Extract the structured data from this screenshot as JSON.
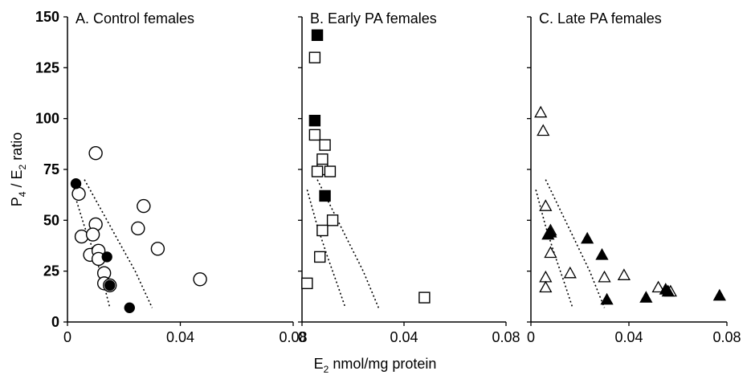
{
  "chart_data": {
    "type": "scatter",
    "ylabel": "P4 / E2 ratio",
    "xlabel": "E2 nmol/mg protein",
    "ylim": [
      0,
      150
    ],
    "xlim": [
      0,
      0.08
    ],
    "y_ticks": [
      "0",
      "25",
      "50",
      "75",
      "100",
      "125",
      "150"
    ],
    "x_ticks": [
      "0",
      "0.04",
      "0.08"
    ],
    "grid": false,
    "panels": [
      {
        "title": "A. Control females",
        "marker": "circle",
        "series": [
          {
            "style": "open",
            "points": [
              [
                0.004,
                63
              ],
              [
                0.01,
                83
              ],
              [
                0.027,
                57
              ],
              [
                0.025,
                46
              ],
              [
                0.032,
                36
              ],
              [
                0.047,
                21
              ],
              [
                0.01,
                48
              ],
              [
                0.005,
                42
              ],
              [
                0.009,
                43
              ],
              [
                0.008,
                33
              ],
              [
                0.011,
                35
              ],
              [
                0.011,
                31
              ],
              [
                0.013,
                24
              ],
              [
                0.013,
                19
              ],
              [
                0.015,
                18
              ]
            ]
          },
          {
            "style": "filled",
            "points": [
              [
                0.003,
                68
              ],
              [
                0.014,
                32
              ],
              [
                0.015,
                18
              ],
              [
                0.022,
                7
              ]
            ]
          }
        ],
        "curves": [
          {
            "name": "lower",
            "points": [
              [
                0.002,
                65
              ],
              [
                0.006,
                47
              ],
              [
                0.01,
                32
              ],
              [
                0.013,
                18
              ],
              [
                0.015,
                7
              ]
            ]
          },
          {
            "name": "upper",
            "points": [
              [
                0.006,
                70
              ],
              [
                0.012,
                55
              ],
              [
                0.018,
                40
              ],
              [
                0.024,
                25
              ],
              [
                0.03,
                7
              ]
            ]
          }
        ]
      },
      {
        "title": "B. Early PA females",
        "marker": "square",
        "series": [
          {
            "style": "open",
            "points": [
              [
                0.005,
                130
              ],
              [
                0.005,
                92
              ],
              [
                0.009,
                87
              ],
              [
                0.008,
                80
              ],
              [
                0.008,
                75
              ],
              [
                0.006,
                74
              ],
              [
                0.011,
                74
              ],
              [
                0.012,
                50
              ],
              [
                0.008,
                45
              ],
              [
                0.007,
                32
              ],
              [
                0.002,
                19
              ],
              [
                0.048,
                12
              ]
            ]
          },
          {
            "style": "filled",
            "points": [
              [
                0.006,
                141
              ],
              [
                0.005,
                99
              ],
              [
                0.009,
                62
              ]
            ]
          }
        ],
        "curves": [
          {
            "name": "lower",
            "points": [
              [
                0.002,
                65
              ],
              [
                0.006,
                47
              ],
              [
                0.01,
                32
              ],
              [
                0.014,
                18
              ],
              [
                0.017,
                7
              ]
            ]
          },
          {
            "name": "upper",
            "points": [
              [
                0.006,
                70
              ],
              [
                0.012,
                55
              ],
              [
                0.018,
                40
              ],
              [
                0.024,
                25
              ],
              [
                0.03,
                7
              ]
            ]
          }
        ]
      },
      {
        "title": "C. Late PA females",
        "marker": "triangle",
        "series": [
          {
            "style": "open",
            "points": [
              [
                0.004,
                103
              ],
              [
                0.005,
                94
              ],
              [
                0.006,
                57
              ],
              [
                0.008,
                45
              ],
              [
                0.008,
                34
              ],
              [
                0.006,
                22
              ],
              [
                0.006,
                17
              ],
              [
                0.016,
                24
              ],
              [
                0.03,
                22
              ],
              [
                0.038,
                23
              ],
              [
                0.052,
                17
              ],
              [
                0.057,
                15
              ]
            ]
          },
          {
            "style": "filled",
            "points": [
              [
                0.008,
                44
              ],
              [
                0.007,
                43
              ],
              [
                0.023,
                41
              ],
              [
                0.029,
                33
              ],
              [
                0.031,
                11
              ],
              [
                0.047,
                12
              ],
              [
                0.055,
                16
              ],
              [
                0.056,
                15
              ],
              [
                0.077,
                13
              ]
            ]
          }
        ],
        "curves": [
          {
            "name": "lower",
            "points": [
              [
                0.002,
                65
              ],
              [
                0.006,
                47
              ],
              [
                0.01,
                32
              ],
              [
                0.014,
                18
              ],
              [
                0.017,
                7
              ]
            ]
          },
          {
            "name": "upper",
            "points": [
              [
                0.006,
                70
              ],
              [
                0.012,
                55
              ],
              [
                0.018,
                40
              ],
              [
                0.024,
                25
              ],
              [
                0.03,
                7
              ]
            ]
          }
        ]
      }
    ]
  }
}
